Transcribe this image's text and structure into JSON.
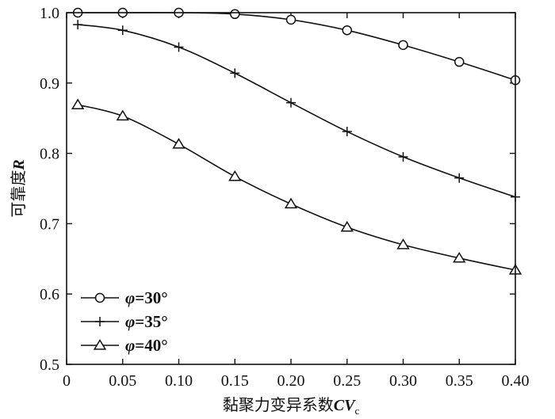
{
  "chart_data": {
    "type": "line",
    "xlabel": {
      "main": "黏聚力变异系数",
      "var": "CV",
      "sub": "c"
    },
    "ylabel": {
      "main": "可靠度",
      "var": "R"
    },
    "xlim": [
      0,
      0.4
    ],
    "ylim": [
      0.5,
      1.0
    ],
    "xticks": [
      "0",
      "0.05",
      "0.10",
      "0.15",
      "0.20",
      "0.25",
      "0.30",
      "0.35",
      "0.40"
    ],
    "yticks": [
      "0.5",
      "0.6",
      "0.7",
      "0.8",
      "0.9",
      "1.0"
    ],
    "x": [
      0.01,
      0.05,
      0.1,
      0.15,
      0.2,
      0.25,
      0.3,
      0.35,
      0.4
    ],
    "legend_position": "bottom-left",
    "grid": false,
    "series": [
      {
        "name": "φ=30°",
        "phi": "φ",
        "label": "=30°",
        "marker": "circle",
        "values": [
          1.0,
          1.0,
          1.0,
          0.998,
          0.99,
          0.975,
          0.954,
          0.93,
          0.904
        ]
      },
      {
        "name": "φ=35°",
        "phi": "φ",
        "label": "=35°",
        "marker": "plus",
        "values": [
          0.983,
          0.975,
          0.951,
          0.914,
          0.872,
          0.831,
          0.795,
          0.765,
          0.738
        ]
      },
      {
        "name": "φ=40°",
        "phi": "φ",
        "label": "=40°",
        "marker": "triangle",
        "values": [
          0.869,
          0.853,
          0.813,
          0.767,
          0.728,
          0.695,
          0.67,
          0.651,
          0.634
        ]
      }
    ]
  }
}
